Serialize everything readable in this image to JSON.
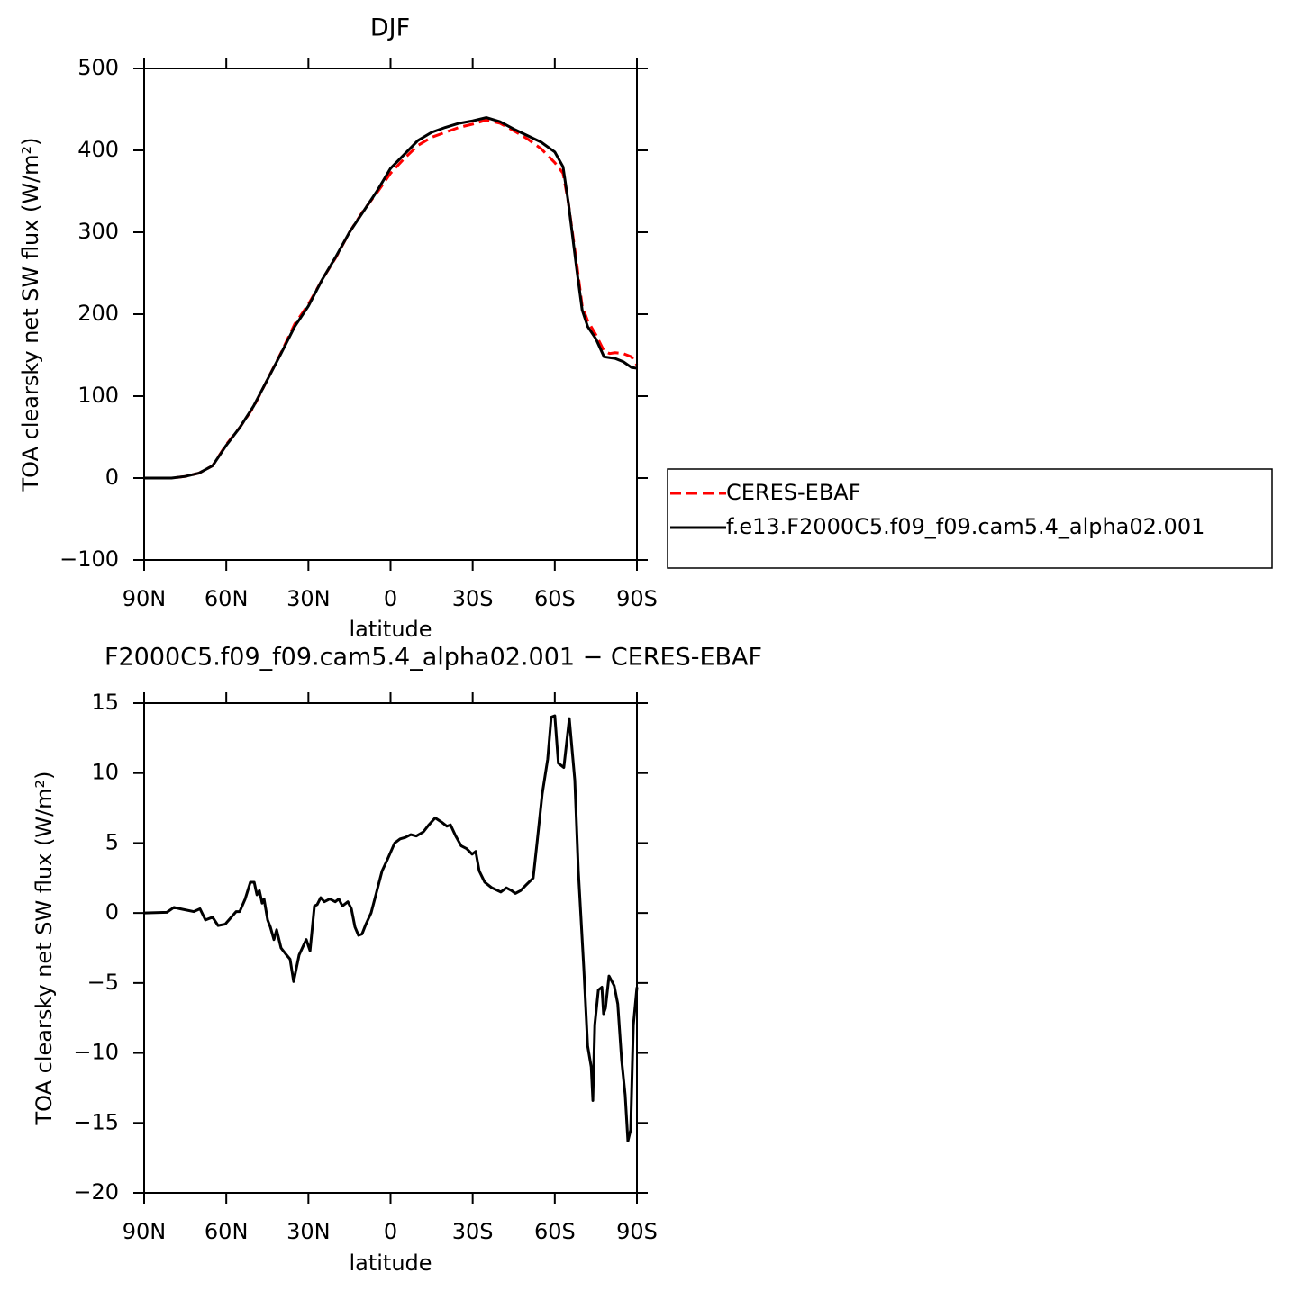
{
  "chart_data": [
    {
      "type": "line",
      "title": "DJF",
      "x_label": "latitude",
      "y_label": "TOA clearsky net SW flux (W/m²)",
      "x": [
        90,
        85,
        80,
        75,
        70,
        65,
        60,
        55,
        50,
        45,
        40,
        35,
        30,
        25,
        20,
        15,
        10,
        5,
        0,
        -5,
        -10,
        -15,
        -20,
        -25,
        -30,
        -35,
        -40,
        -45,
        -50,
        -55,
        -60,
        -63,
        -65,
        -68,
        -70,
        -72,
        -75,
        -78,
        -80,
        -82,
        -85,
        -88,
        -90
      ],
      "series": [
        {
          "name": "CERES-EBAF",
          "color": "#ff0000",
          "line_style": "dashed",
          "values": [
            0,
            0,
            0,
            2,
            6,
            15,
            41,
            62,
            87,
            120,
            153,
            188,
            212,
            242,
            269,
            300,
            326,
            348,
            372,
            390,
            406,
            416,
            422,
            428,
            432,
            437,
            433,
            424,
            414,
            402,
            385,
            372,
            335,
            262,
            210,
            192,
            175,
            155,
            152,
            153,
            152,
            148,
            138
          ]
        },
        {
          "name": "f.e13.F2000C5.f09_f09.cam5.4_alpha02.001",
          "color": "#000000",
          "line_style": "solid",
          "values": [
            0,
            0,
            0,
            2,
            6,
            15,
            40,
            62,
            88,
            120,
            152,
            185,
            210,
            242,
            270,
            300,
            325,
            350,
            378,
            395,
            412,
            422,
            428,
            433,
            436,
            440,
            435,
            426,
            418,
            410,
            398,
            380,
            335,
            255,
            205,
            185,
            170,
            148,
            147,
            146,
            142,
            135,
            134
          ]
        }
      ],
      "xlim": [
        90,
        -90
      ],
      "xticks": [
        {
          "value": 90,
          "label": "90N"
        },
        {
          "value": 60,
          "label": "60N"
        },
        {
          "value": 30,
          "label": "30N"
        },
        0,
        {
          "value": -30,
          "label": "30S"
        },
        {
          "value": -60,
          "label": "60S"
        },
        {
          "value": -90,
          "label": "90S"
        }
      ],
      "ylim": [
        -100,
        500
      ],
      "yticks": [
        {
          "value": -100,
          "label": "−100"
        },
        0,
        100,
        200,
        300,
        400,
        500
      ],
      "legend": "right"
    },
    {
      "type": "line",
      "title": "F2000C5.f09_f09.cam5.4_alpha02.001 − CERES-EBAF",
      "x_label": "latitude",
      "y_label": "TOA clearsky net SW flux (W/m²)",
      "x": [
        90,
        81.7,
        79.1,
        76.8,
        71.9,
        69.6,
        67.6,
        65,
        63,
        60.4,
        56.4,
        55.1,
        53.1,
        51.2,
        49.8,
        48.8,
        47.9,
        46.9,
        46.2,
        44.9,
        43.9,
        42.6,
        41.6,
        40,
        38,
        36.7,
        35.4,
        33.4,
        30.8,
        29.4,
        27.8,
        26.8,
        25.5,
        24.2,
        22.2,
        20.2,
        18.9,
        17.6,
        15.6,
        14.3,
        13,
        11.7,
        10.4,
        9,
        7.1,
        5.1,
        3.1,
        1.2,
        -1.5,
        -3.5,
        -5.4,
        -7.4,
        -9.4,
        -12,
        -14,
        -16.3,
        -18.6,
        -20.6,
        -21.9,
        -23.8,
        -25.8,
        -27.8,
        -29.8,
        -31.1,
        -32.4,
        -34.4,
        -37,
        -40.3,
        -42.3,
        -44.2,
        -45.6,
        -47.5,
        -49.5,
        -52.1,
        -53.5,
        -55.4,
        -57.4,
        -58.7,
        -60,
        -61.3,
        -63.3,
        -65.3,
        -67.3,
        -68.6,
        -70.6,
        -72,
        -73.3,
        -73.9,
        -74.6,
        -75.9,
        -77.2,
        -77.8,
        -78.5,
        -79.8,
        -81.7,
        -83,
        -84.4,
        -85.7,
        -86.7,
        -87.7,
        -88.7,
        -90
      ],
      "values": [
        0,
        0.05,
        0.4,
        0.3,
        0.1,
        0.3,
        -0.5,
        -0.3,
        -0.9,
        -0.8,
        0.1,
        0.1,
        1,
        2.2,
        2.2,
        1.3,
        1.6,
        0.7,
        1,
        -0.5,
        -1,
        -1.9,
        -1.2,
        -2.5,
        -3,
        -3.3,
        -4.9,
        -3,
        -1.9,
        -2.7,
        0.5,
        0.6,
        1.1,
        0.8,
        1,
        0.8,
        1,
        0.5,
        0.8,
        0.3,
        -1,
        -1.6,
        -1.5,
        -0.8,
        0,
        1.5,
        3,
        3.8,
        5,
        5.3,
        5.4,
        5.6,
        5.5,
        5.8,
        6.3,
        6.8,
        6.5,
        6.2,
        6.3,
        5.5,
        4.8,
        4.6,
        4.2,
        4.4,
        3,
        2.2,
        1.8,
        1.5,
        1.8,
        1.6,
        1.4,
        1.6,
        2,
        2.5,
        5,
        8.5,
        11,
        14,
        14.1,
        10.7,
        10.4,
        13.9,
        9.5,
        3,
        -4,
        -9.5,
        -11,
        -13.4,
        -8,
        -5.5,
        -5.3,
        -7.2,
        -6.8,
        -4.5,
        -5.2,
        -6.5,
        -10.5,
        -13,
        -16.3,
        -15.5,
        -8,
        -5.3
      ],
      "color": "#000000",
      "xlim": [
        90,
        -90
      ],
      "xticks": [
        {
          "value": 90,
          "label": "90N"
        },
        {
          "value": 60,
          "label": "60N"
        },
        {
          "value": 30,
          "label": "30N"
        },
        0,
        {
          "value": -30,
          "label": "30S"
        },
        {
          "value": -60,
          "label": "60S"
        },
        {
          "value": -90,
          "label": "90S"
        }
      ],
      "ylim": [
        -20,
        15
      ],
      "yticks": [
        {
          "value": -20,
          "label": "−20"
        },
        {
          "value": -15,
          "label": "−15"
        },
        {
          "value": -10,
          "label": "−10"
        },
        {
          "value": -5,
          "label": "−5"
        },
        0,
        5,
        10,
        15
      ]
    }
  ]
}
